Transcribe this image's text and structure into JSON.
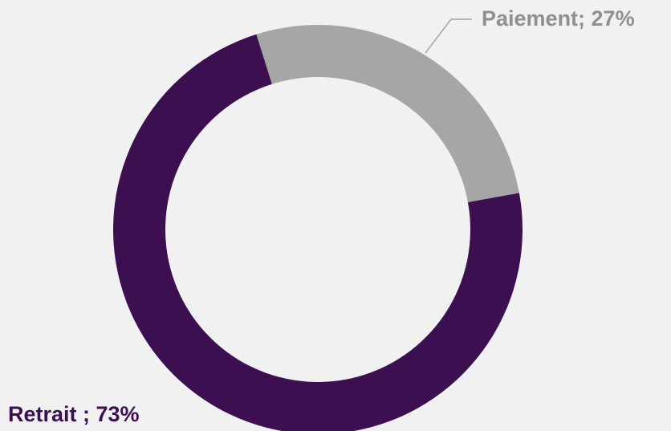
{
  "chart_data": {
    "type": "donut",
    "values": [
      27,
      73
    ],
    "value_labels": [
      "Paiement; 27%",
      "Retrait ; 73%"
    ],
    "colors": [
      "#a6a6a6",
      "#3c1050"
    ]
  }
}
